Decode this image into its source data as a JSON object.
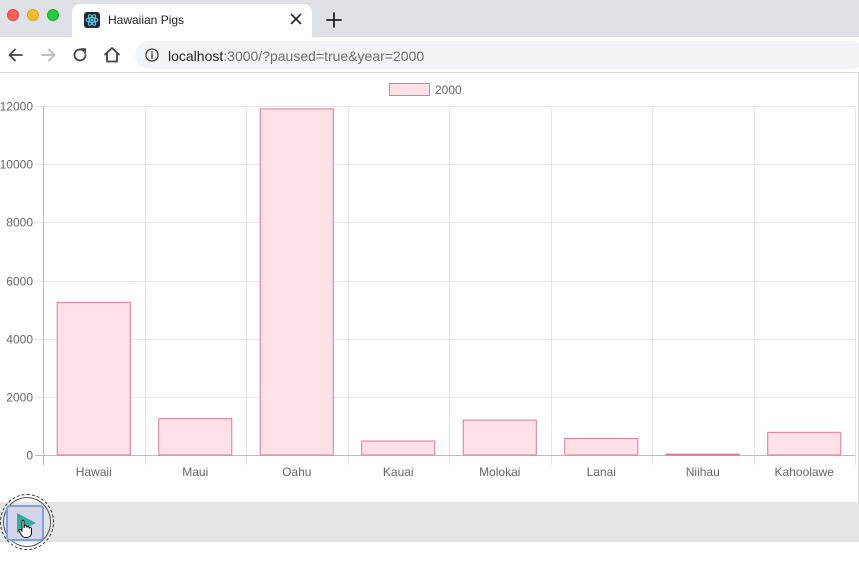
{
  "browser": {
    "tab_title": "Hawaiian Pigs",
    "url_host": "localhost",
    "url_rest": ":3000/?paused=true&year=2000",
    "icons": {
      "close": "close-icon",
      "minimize": "minimize-icon",
      "maximize": "maximize-icon",
      "favicon": "react-icon",
      "tab_close": "tab-close-icon",
      "new_tab": "plus-icon",
      "back": "arrow-left-icon",
      "forward": "arrow-right-icon",
      "reload": "reload-icon",
      "home": "home-icon",
      "site_info": "info-icon"
    }
  },
  "controls": {
    "state": "paused",
    "play_icon": "play-icon",
    "play_color": "#3aa9a0"
  },
  "chart_data": {
    "type": "bar",
    "categories": [
      "Hawaii",
      "Maui",
      "Oahu",
      "Kauai",
      "Molokai",
      "Lanai",
      "Niihau",
      "Kahoolawe"
    ],
    "series": [
      {
        "name": "2000",
        "values": [
          5250,
          1250,
          11900,
          480,
          1200,
          570,
          30,
          780
        ]
      }
    ],
    "ylim": [
      0,
      12000
    ],
    "yticks": [
      "0",
      "2000",
      "4000",
      "6000",
      "8000",
      "10000",
      "12000"
    ],
    "grid": true,
    "legend": "top-center",
    "colors": {
      "bar_fill": "#ffe1e7",
      "bar_stroke": "#d97b97",
      "grid": "#e6e6e6",
      "axis": "#bcbcbc"
    }
  }
}
